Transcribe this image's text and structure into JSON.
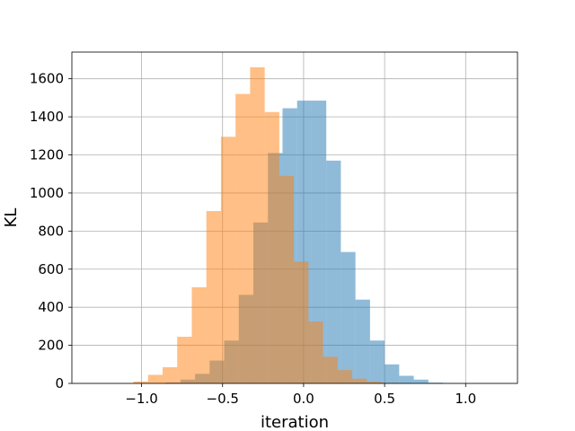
{
  "chart_data": {
    "type": "bar",
    "title": "",
    "xlabel": "iteration",
    "ylabel": "KL",
    "xlim": [
      -1.43,
      1.32
    ],
    "ylim": [
      0,
      1740
    ],
    "grid": true,
    "legend": "none",
    "xticks": [
      -1.0,
      -0.5,
      0.0,
      0.5,
      1.0
    ],
    "xtick_labels": [
      "−1.0",
      "−0.5",
      "0.0",
      "0.5",
      "1.0"
    ],
    "yticks": [
      0,
      200,
      400,
      600,
      800,
      1000,
      1200,
      1400,
      1600
    ],
    "ytick_labels": [
      "0",
      "200",
      "400",
      "600",
      "800",
      "1000",
      "1200",
      "1400",
      "1600"
    ],
    "series": [
      {
        "color": "#1f77b4",
        "opacity": 0.5,
        "bins": [
          {
            "x0": -0.94,
            "x1": -0.85,
            "value": 1
          },
          {
            "x0": -0.85,
            "x1": -0.76,
            "value": 5
          },
          {
            "x0": -0.76,
            "x1": -0.67,
            "value": 20
          },
          {
            "x0": -0.67,
            "x1": -0.58,
            "value": 50
          },
          {
            "x0": -0.58,
            "x1": -0.49,
            "value": 120
          },
          {
            "x0": -0.49,
            "x1": -0.4,
            "value": 225
          },
          {
            "x0": -0.4,
            "x1": -0.31,
            "value": 465
          },
          {
            "x0": -0.31,
            "x1": -0.22,
            "value": 845
          },
          {
            "x0": -0.22,
            "x1": -0.13,
            "value": 1210
          },
          {
            "x0": -0.13,
            "x1": -0.04,
            "value": 1445
          },
          {
            "x0": -0.04,
            "x1": 0.05,
            "value": 1485
          },
          {
            "x0": 0.05,
            "x1": 0.14,
            "value": 1485
          },
          {
            "x0": 0.14,
            "x1": 0.23,
            "value": 1170
          },
          {
            "x0": 0.23,
            "x1": 0.32,
            "value": 690
          },
          {
            "x0": 0.32,
            "x1": 0.41,
            "value": 440
          },
          {
            "x0": 0.41,
            "x1": 0.5,
            "value": 225
          },
          {
            "x0": 0.5,
            "x1": 0.59,
            "value": 100
          },
          {
            "x0": 0.59,
            "x1": 0.68,
            "value": 40
          },
          {
            "x0": 0.68,
            "x1": 0.77,
            "value": 20
          },
          {
            "x0": 0.77,
            "x1": 0.86,
            "value": 4
          },
          {
            "x0": 0.86,
            "x1": 0.95,
            "value": 2
          },
          {
            "x0": 0.95,
            "x1": 1.04,
            "value": 1
          },
          {
            "x0": 1.04,
            "x1": 1.13,
            "value": 1
          },
          {
            "x0": 1.13,
            "x1": 1.22,
            "value": 1
          }
        ]
      },
      {
        "color": "#ff7f0e",
        "opacity": 0.5,
        "bins": [
          {
            "x0": -1.32,
            "x1": -1.23,
            "value": 1
          },
          {
            "x0": -1.23,
            "x1": -1.14,
            "value": 1
          },
          {
            "x0": -1.14,
            "x1": -1.05,
            "value": 2
          },
          {
            "x0": -1.05,
            "x1": -0.96,
            "value": 10
          },
          {
            "x0": -0.96,
            "x1": -0.87,
            "value": 45
          },
          {
            "x0": -0.87,
            "x1": -0.78,
            "value": 85
          },
          {
            "x0": -0.78,
            "x1": -0.69,
            "value": 245
          },
          {
            "x0": -0.69,
            "x1": -0.6,
            "value": 505
          },
          {
            "x0": -0.6,
            "x1": -0.51,
            "value": 905
          },
          {
            "x0": -0.51,
            "x1": -0.42,
            "value": 1295
          },
          {
            "x0": -0.42,
            "x1": -0.33,
            "value": 1520
          },
          {
            "x0": -0.33,
            "x1": -0.24,
            "value": 1660
          },
          {
            "x0": -0.24,
            "x1": -0.15,
            "value": 1425
          },
          {
            "x0": -0.15,
            "x1": -0.06,
            "value": 1090
          },
          {
            "x0": -0.06,
            "x1": 0.03,
            "value": 640
          },
          {
            "x0": 0.03,
            "x1": 0.12,
            "value": 325
          },
          {
            "x0": 0.12,
            "x1": 0.21,
            "value": 140
          },
          {
            "x0": 0.21,
            "x1": 0.3,
            "value": 70
          },
          {
            "x0": 0.3,
            "x1": 0.39,
            "value": 25
          },
          {
            "x0": 0.39,
            "x1": 0.48,
            "value": 10
          },
          {
            "x0": 0.48,
            "x1": 0.57,
            "value": 3
          },
          {
            "x0": 0.57,
            "x1": 0.66,
            "value": 1
          }
        ]
      }
    ]
  }
}
